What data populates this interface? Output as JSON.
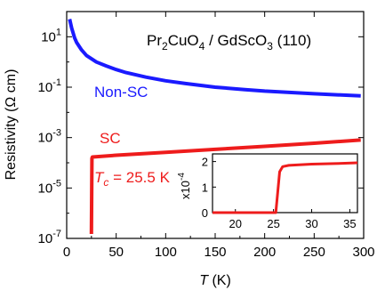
{
  "chart_data": [
    {
      "type": "line",
      "title": "Pr2CuO4 / GdScO3 (110)",
      "title_parts": {
        "formula": "Pr",
        "sub1": "2",
        "mid": "CuO",
        "sub2": "4",
        "rest": " / GdScO",
        "sub3": "3",
        "tail": " (110)"
      },
      "xlabel": "T (K)",
      "xlabel_parts": {
        "var": "T",
        "unit": " (K)"
      },
      "ylabel": "Resistivity (Ω cm)",
      "xlim": [
        0,
        300
      ],
      "ylim": [
        1e-07,
        100
      ],
      "y_scale": "log",
      "x_ticks": [
        0,
        50,
        100,
        150,
        200,
        250,
        300
      ],
      "x_tick_labels": [
        "0",
        "50",
        "100",
        "150",
        "200",
        "250",
        "300"
      ],
      "y_ticks": [
        1e-07,
        1e-05,
        0.001,
        0.1,
        10
      ],
      "y_tick_labels": [
        {
          "base": "10",
          "exp": "-7"
        },
        {
          "base": "10",
          "exp": "-5"
        },
        {
          "base": "10",
          "exp": "-3"
        },
        {
          "base": "10",
          "exp": "-1"
        },
        {
          "base": "10",
          "exp": "1"
        }
      ],
      "series": [
        {
          "name": "Non-SC",
          "color": "#1a1aff",
          "x": [
            3,
            5,
            8,
            10,
            15,
            20,
            30,
            40,
            50,
            60,
            80,
            100,
            120,
            150,
            180,
            200,
            250,
            297
          ],
          "y": [
            50,
            22,
            9,
            6,
            3,
            1.8,
            1.0,
            0.7,
            0.5,
            0.38,
            0.25,
            0.18,
            0.14,
            0.1,
            0.08,
            0.07,
            0.055,
            0.045
          ]
        },
        {
          "name": "SC",
          "color": "#ee1c1c",
          "annotation": {
            "var": "T",
            "sub": "c",
            "rest": " = 25.5 K"
          },
          "x": [
            25,
            25.5,
            26,
            50,
            100,
            150,
            200,
            250,
            297
          ],
          "y": [
            1.5e-07,
            0.00015,
            0.00017,
            0.0002,
            0.00026,
            0.00034,
            0.00045,
            0.0006,
            0.0008
          ]
        }
      ]
    },
    {
      "type": "line",
      "role": "inset",
      "xlim": [
        17,
        36
      ],
      "ylim": [
        0,
        2.3
      ],
      "x_ticks": [
        20,
        25,
        30,
        35
      ],
      "x_tick_labels": [
        "20",
        "25",
        "30",
        "35"
      ],
      "y_ticks": [
        0,
        1,
        2
      ],
      "y_tick_labels": [
        "0",
        "1",
        "2"
      ],
      "ylabel": {
        "base": "x10",
        "exp": "-4"
      },
      "series": [
        {
          "color": "#ee1c1c",
          "x": [
            17,
            25.3,
            25.8,
            26.2,
            27,
            30,
            33,
            36
          ],
          "y": [
            0,
            0,
            1.6,
            1.8,
            1.85,
            1.9,
            1.92,
            1.95
          ]
        }
      ]
    }
  ]
}
